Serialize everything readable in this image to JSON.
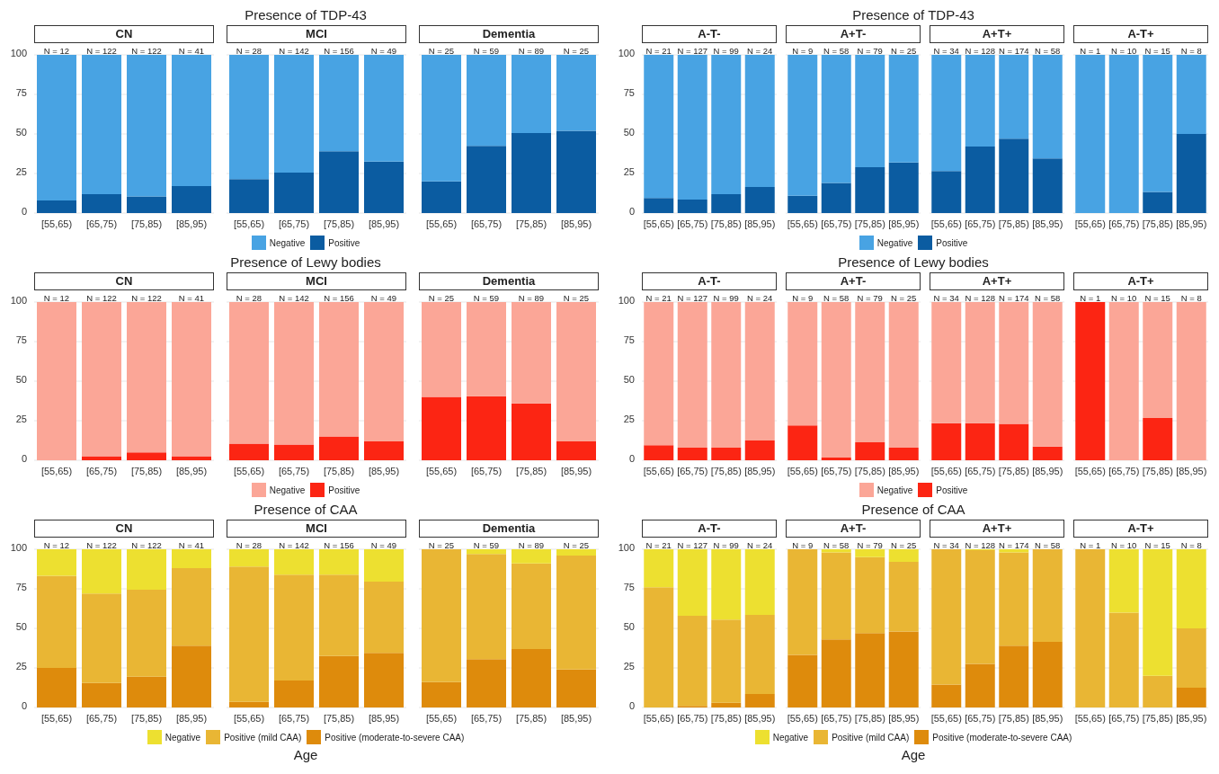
{
  "chart_data": [
    {
      "type": "bar",
      "stacked": true,
      "title": "Presence of TDP-43",
      "legend": "bottom",
      "grid": "y",
      "ylim": [
        0,
        100
      ],
      "yticks": [
        0,
        25,
        50,
        75,
        100
      ],
      "categories": [
        "[55,65)",
        "[65,75)",
        "[75,85)",
        "[85,95)",
        null,
        "[55,65)",
        "[65,75)",
        "[75,85)",
        "[85,95)",
        null,
        "[55,65)",
        "[65,75)",
        "[75,85)",
        "[85,95)"
      ],
      "series": [
        {
          "name": "Positive",
          "color": "#0b5ca1",
          "values": [
            8,
            12,
            10.5,
            17,
            null,
            21.5,
            25.5,
            39,
            32.5,
            null,
            20,
            42.5,
            50.5,
            52
          ]
        },
        {
          "name": "Negative",
          "color": "#48a3e3",
          "values": [
            92,
            88,
            89.5,
            83,
            null,
            78.5,
            74.5,
            61,
            67.5,
            null,
            80,
            57.5,
            49.5,
            48
          ]
        }
      ],
      "annotations": [
        "CN",
        "MCI",
        "Dementia",
        "N = 12",
        "N = 122",
        "N = 122",
        "N = 41",
        "N = 28",
        "N = 142",
        "N = 156",
        "N = 49",
        "N = 25",
        "N = 59",
        "N = 89",
        "N = 25"
      ]
    },
    {
      "type": "bar",
      "stacked": true,
      "title": "Presence of TDP-43",
      "legend": "bottom",
      "grid": "y",
      "ylim": [
        0,
        100
      ],
      "yticks": [
        0,
        25,
        50,
        75,
        100
      ],
      "categories": [
        "[55,65)",
        "[65,75)",
        "[75,85)",
        "[85,95)",
        null,
        "[55,65)",
        "[65,75)",
        "[75,85)",
        "[85,95)",
        null,
        "[55,65)",
        "[65,75)",
        "[75,85)",
        "[85,95)",
        null,
        "[55,65)",
        "[65,75)",
        "[75,85)",
        "[85,95)"
      ],
      "series": [
        {
          "name": "Positive",
          "color": "#0b5ca1",
          "values": [
            9.5,
            8.5,
            12,
            16.5,
            null,
            11,
            19,
            29,
            32,
            null,
            26.5,
            42,
            47,
            34.5,
            null,
            0,
            0,
            13.3,
            50
          ]
        },
        {
          "name": "Negative",
          "color": "#48a3e3",
          "values": [
            90.5,
            91.5,
            88,
            83.5,
            null,
            89,
            81,
            71,
            68,
            null,
            73.5,
            58,
            53,
            65.5,
            null,
            100,
            100,
            86.7,
            50
          ]
        }
      ],
      "annotations": [
        "A-T-",
        "A+T-",
        "A+T+",
        "A-T+",
        "N = 21",
        "N = 127",
        "N = 99",
        "N = 24",
        "N = 9",
        "N = 58",
        "N = 79",
        "N = 25",
        "N = 34",
        "N = 128",
        "N = 174",
        "N = 58",
        "N = 1",
        "N = 10",
        "N = 15",
        "N = 8"
      ]
    },
    {
      "type": "bar",
      "stacked": true,
      "title": "Presence of Lewy bodies",
      "legend": "bottom",
      "grid": "y",
      "ylim": [
        0,
        100
      ],
      "yticks": [
        0,
        25,
        50,
        75,
        100
      ],
      "categories": [
        "[55,65)",
        "[65,75)",
        "[75,85)",
        "[85,95)",
        null,
        "[55,65)",
        "[65,75)",
        "[75,85)",
        "[85,95)",
        null,
        "[55,65)",
        "[65,75)",
        "[75,85)",
        "[85,95)"
      ],
      "series": [
        {
          "name": "Positive",
          "color": "#fc2513",
          "values": [
            0,
            2.5,
            5,
            2.5,
            null,
            10.5,
            10,
            15,
            12,
            null,
            40,
            40.5,
            36,
            12
          ]
        },
        {
          "name": "Negative",
          "color": "#fba697",
          "values": [
            100,
            97.5,
            95,
            97.5,
            null,
            89.5,
            90,
            85,
            88,
            null,
            60,
            59.5,
            64,
            88
          ]
        }
      ],
      "annotations": [
        "CN",
        "MCI",
        "Dementia",
        "N = 12",
        "N = 122",
        "N = 122",
        "N = 41",
        "N = 28",
        "N = 142",
        "N = 156",
        "N = 49",
        "N = 25",
        "N = 59",
        "N = 89",
        "N = 25"
      ]
    },
    {
      "type": "bar",
      "stacked": true,
      "title": "Presence of Lewy bodies",
      "legend": "bottom",
      "grid": "y",
      "ylim": [
        0,
        100
      ],
      "yticks": [
        0,
        25,
        50,
        75,
        100
      ],
      "categories": [
        "[55,65)",
        "[65,75)",
        "[75,85)",
        "[85,95)",
        null,
        "[55,65)",
        "[65,75)",
        "[75,85)",
        "[85,95)",
        null,
        "[55,65)",
        "[65,75)",
        "[75,85)",
        "[85,95)",
        null,
        "[55,65)",
        "[65,75)",
        "[75,85)",
        "[85,95)"
      ],
      "series": [
        {
          "name": "Positive",
          "color": "#fc2513",
          "values": [
            9.5,
            8,
            8,
            12.5,
            null,
            22,
            1.7,
            11.4,
            8,
            null,
            23.5,
            23.4,
            23,
            8.6,
            null,
            100,
            0,
            26.7,
            0
          ]
        },
        {
          "name": "Negative",
          "color": "#fba697",
          "values": [
            90.5,
            92,
            92,
            87.5,
            null,
            78,
            98.3,
            88.6,
            92,
            null,
            76.5,
            76.6,
            77,
            91.4,
            null,
            0,
            100,
            73.3,
            100
          ]
        }
      ],
      "annotations": [
        "A-T-",
        "A+T-",
        "A+T+",
        "A-T+",
        "N = 21",
        "N = 127",
        "N = 99",
        "N = 24",
        "N = 9",
        "N = 58",
        "N = 79",
        "N = 25",
        "N = 34",
        "N = 128",
        "N = 174",
        "N = 58",
        "N = 1",
        "N = 10",
        "N = 15",
        "N = 8"
      ]
    },
    {
      "type": "bar",
      "stacked": true,
      "title": "Presence of CAA",
      "xlabel": "Age",
      "legend": "bottom",
      "grid": "y",
      "ylim": [
        0,
        100
      ],
      "yticks": [
        0,
        25,
        50,
        75,
        100
      ],
      "categories": [
        "[55,65)",
        "[65,75)",
        "[75,85)",
        "[85,95)",
        null,
        "[55,65)",
        "[65,75)",
        "[75,85)",
        "[85,95)",
        null,
        "[55,65)",
        "[65,75)",
        "[75,85)",
        "[85,95)"
      ],
      "series": [
        {
          "name": "Positive (moderate-to-severe CAA)",
          "color": "#de8b0c",
          "values": [
            25,
            15.5,
            19.5,
            39,
            null,
            3.5,
            17,
            32.5,
            34.5,
            null,
            16,
            30.5,
            37,
            24
          ]
        },
        {
          "name": "Positive (mild CAA)",
          "color": "#e9b634",
          "values": [
            58.3,
            56.5,
            55,
            49,
            null,
            85.5,
            67,
            51.5,
            45,
            null,
            84,
            66.5,
            54,
            72
          ]
        },
        {
          "name": "Negative",
          "color": "#ede030",
          "values": [
            16.7,
            28,
            25.5,
            12,
            null,
            11,
            16,
            16,
            20.5,
            null,
            0,
            3,
            9,
            4
          ]
        }
      ],
      "annotations": [
        "CN",
        "MCI",
        "Dementia",
        "N = 12",
        "N = 122",
        "N = 122",
        "N = 41",
        "N = 28",
        "N = 142",
        "N = 156",
        "N = 49",
        "N = 25",
        "N = 59",
        "N = 89",
        "N = 25"
      ]
    },
    {
      "type": "bar",
      "stacked": true,
      "title": "Presence of CAA",
      "xlabel": "Age",
      "legend": "bottom",
      "grid": "y",
      "ylim": [
        0,
        100
      ],
      "yticks": [
        0,
        25,
        50,
        75,
        100
      ],
      "categories": [
        "[55,65)",
        "[65,75)",
        "[75,85)",
        "[85,95)",
        null,
        "[55,65)",
        "[65,75)",
        "[75,85)",
        "[85,95)",
        null,
        "[55,65)",
        "[65,75)",
        "[75,85)",
        "[85,95)",
        null,
        "[55,65)",
        "[65,75)",
        "[75,85)",
        "[85,95)"
      ],
      "series": [
        {
          "name": "Positive (moderate-to-severe CAA)",
          "color": "#de8b0c",
          "values": [
            0,
            1,
            3,
            8.5,
            null,
            33.3,
            43,
            47,
            48,
            null,
            14.5,
            27.5,
            39,
            41.5,
            null,
            0,
            0,
            0,
            12.5
          ]
        },
        {
          "name": "Positive (mild CAA)",
          "color": "#e9b634",
          "values": [
            76,
            57,
            52.5,
            50,
            null,
            66.7,
            55,
            48,
            44,
            null,
            85.5,
            72,
            59,
            58.5,
            null,
            100,
            60,
            20,
            37.5
          ]
        },
        {
          "name": "Negative",
          "color": "#ede030",
          "values": [
            24,
            42,
            44.5,
            41.5,
            null,
            0,
            2,
            5,
            8,
            null,
            0,
            0.5,
            2,
            0,
            null,
            0,
            40,
            80,
            50
          ]
        }
      ],
      "annotations": [
        "A-T-",
        "A+T-",
        "A+T+",
        "A-T+",
        "N = 21",
        "N = 127",
        "N = 99",
        "N = 24",
        "N = 9",
        "N = 58",
        "N = 79",
        "N = 25",
        "N = 34",
        "N = 128",
        "N = 174",
        "N = 58",
        "N = 1",
        "N = 10",
        "N = 15",
        "N = 8"
      ]
    }
  ]
}
